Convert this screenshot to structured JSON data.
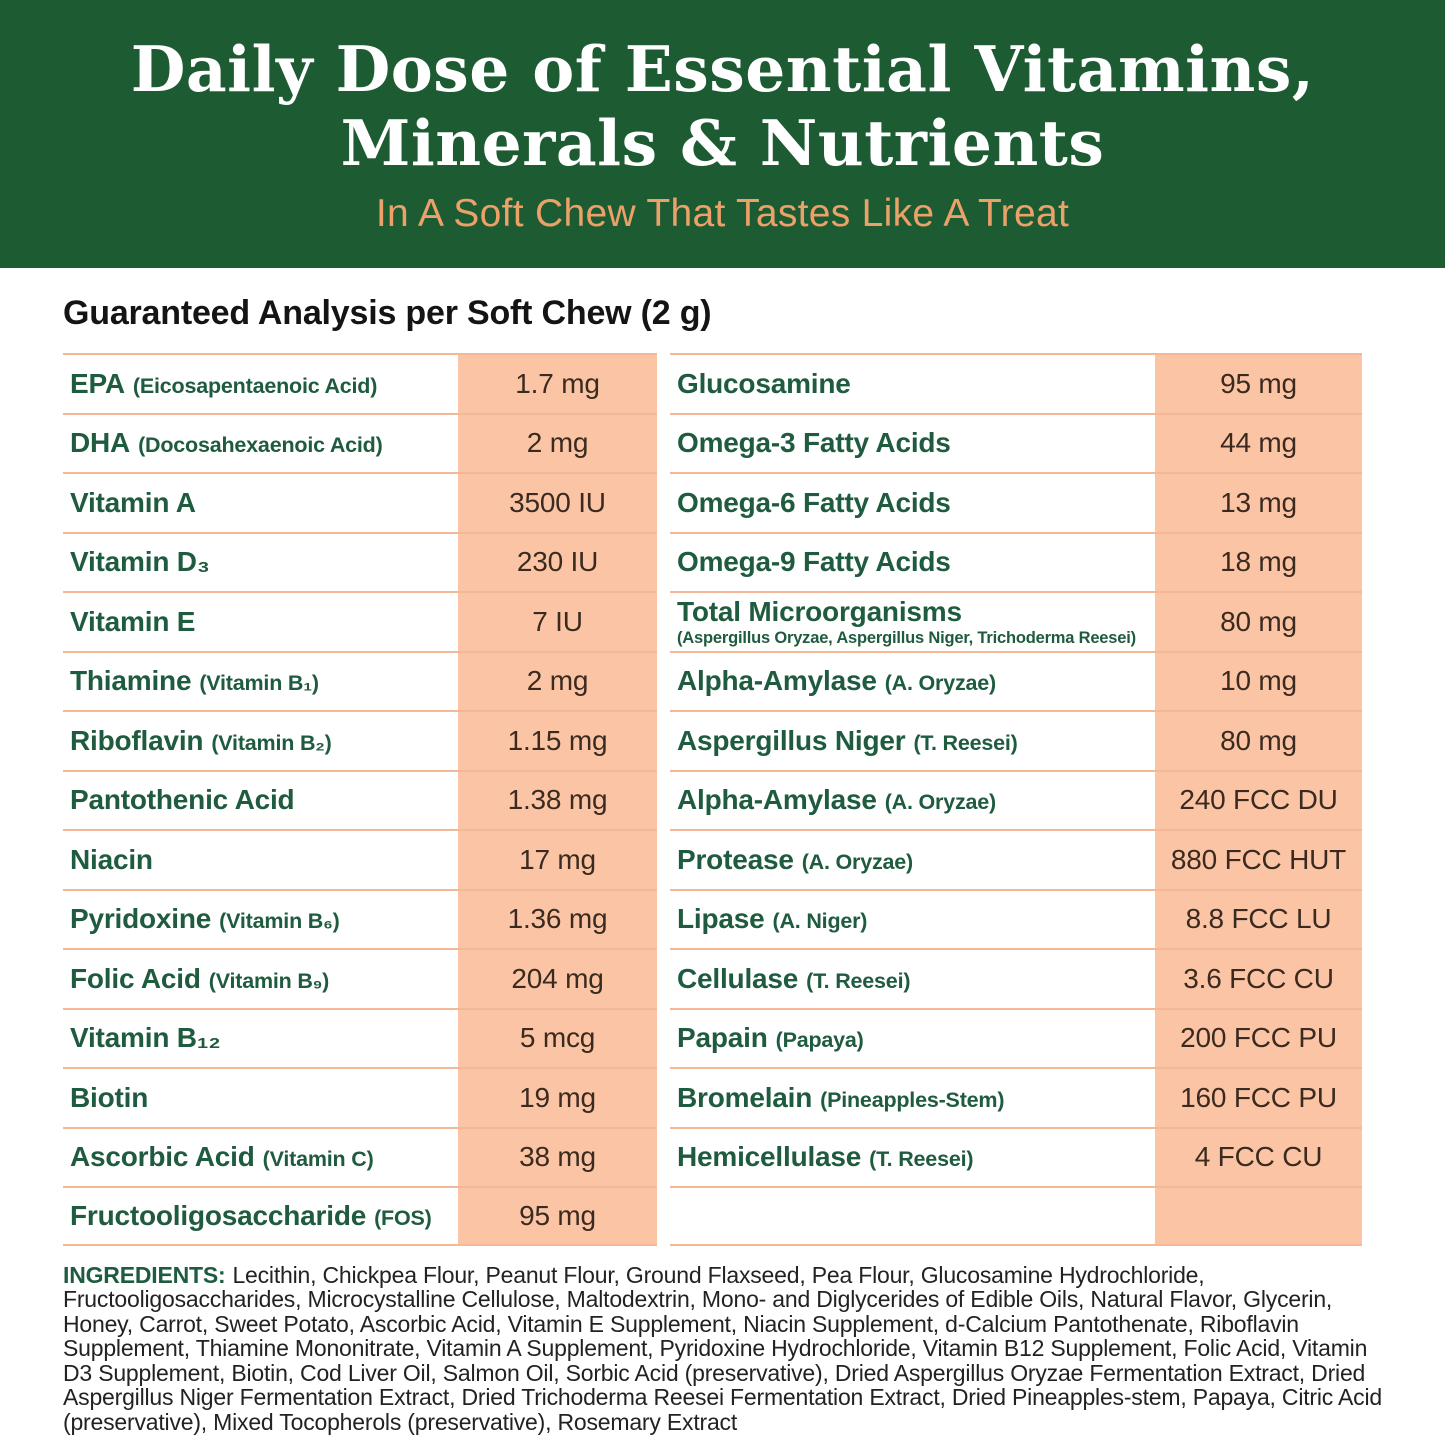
{
  "header": {
    "title_line1": "Daily Dose of Essential Vitamins,",
    "title_line2": "Minerals & Nutrients",
    "subtitle": "In A Soft Chew That Tastes Like A Treat"
  },
  "colors": {
    "banner_green": "#1d5c33",
    "subtitle_orange": "#eba168",
    "label_green": "#1f5b3e",
    "value_column_peach": "#fbc5a5",
    "separator_peach": "#f5b897",
    "value_text": "#3b2a1f"
  },
  "analysis": {
    "heading": "Guaranteed Analysis per Soft Chew (2 g)",
    "rows": [
      {
        "l_name": "EPA",
        "l_note": "(Eicosapentaenoic Acid)",
        "l_sub": "",
        "l_value": "1.7 mg",
        "r_name": "Glucosamine",
        "r_note": "",
        "r_sub": "",
        "r_value": "95 mg"
      },
      {
        "l_name": "DHA",
        "l_note": "(Docosahexaenoic Acid)",
        "l_sub": "",
        "l_value": "2 mg",
        "r_name": "Omega-3 Fatty Acids",
        "r_note": "",
        "r_sub": "",
        "r_value": "44 mg"
      },
      {
        "l_name": "Vitamin A",
        "l_note": "",
        "l_sub": "",
        "l_value": "3500 IU",
        "r_name": "Omega-6 Fatty Acids",
        "r_note": "",
        "r_sub": "",
        "r_value": "13 mg"
      },
      {
        "l_name": "Vitamin D₃",
        "l_note": "",
        "l_sub": "",
        "l_value": "230 IU",
        "r_name": "Omega-9 Fatty Acids",
        "r_note": "",
        "r_sub": "",
        "r_value": "18 mg"
      },
      {
        "l_name": "Vitamin E",
        "l_note": "",
        "l_sub": "",
        "l_value": "7 IU",
        "r_name": "Total Microorganisms",
        "r_note": "",
        "r_sub": "(Aspergillus Oryzae, Aspergillus Niger, Trichoderma Reesei)",
        "r_value": "80 mg"
      },
      {
        "l_name": "Thiamine",
        "l_note": "(Vitamin B₁)",
        "l_sub": "",
        "l_value": "2 mg",
        "r_name": "Alpha-Amylase",
        "r_note": "(A. Oryzae)",
        "r_sub": "",
        "r_value": "10 mg"
      },
      {
        "l_name": "Riboflavin",
        "l_note": "(Vitamin B₂)",
        "l_sub": "",
        "l_value": "1.15 mg",
        "r_name": "Aspergillus Niger",
        "r_note": "(T. Reesei)",
        "r_sub": "",
        "r_value": "80 mg"
      },
      {
        "l_name": "Pantothenic Acid",
        "l_note": "",
        "l_sub": "",
        "l_value": "1.38 mg",
        "r_name": "Alpha-Amylase",
        "r_note": "(A. Oryzae)",
        "r_sub": "",
        "r_value": "240 FCC DU"
      },
      {
        "l_name": "Niacin",
        "l_note": "",
        "l_sub": "",
        "l_value": "17 mg",
        "r_name": "Protease",
        "r_note": "(A. Oryzae)",
        "r_sub": "",
        "r_value": "880 FCC HUT"
      },
      {
        "l_name": "Pyridoxine",
        "l_note": "(Vitamin B₆)",
        "l_sub": "",
        "l_value": "1.36 mg",
        "r_name": "Lipase",
        "r_note": "(A. Niger)",
        "r_sub": "",
        "r_value": "8.8 FCC LU"
      },
      {
        "l_name": "Folic Acid",
        "l_note": "(Vitamin B₉)",
        "l_sub": "",
        "l_value": "204 mg",
        "r_name": "Cellulase",
        "r_note": "(T. Reesei)",
        "r_sub": "",
        "r_value": "3.6 FCC CU"
      },
      {
        "l_name": "Vitamin B₁₂",
        "l_note": "",
        "l_sub": "",
        "l_value": "5 mcg",
        "r_name": "Papain",
        "r_note": "(Papaya)",
        "r_sub": "",
        "r_value": "200 FCC PU"
      },
      {
        "l_name": "Biotin",
        "l_note": "",
        "l_sub": "",
        "l_value": "19 mg",
        "r_name": "Bromelain",
        "r_note": "(Pineapples-Stem)",
        "r_sub": "",
        "r_value": "160 FCC PU"
      },
      {
        "l_name": "Ascorbic Acid",
        "l_note": "(Vitamin C)",
        "l_sub": "",
        "l_value": "38 mg",
        "r_name": "Hemicellulase",
        "r_note": "(T. Reesei)",
        "r_sub": "",
        "r_value": "4 FCC CU"
      },
      {
        "l_name": "Fructooligosaccharide",
        "l_note": "(FOS)",
        "l_sub": "",
        "l_value": "95 mg",
        "r_name": "",
        "r_note": "",
        "r_sub": "",
        "r_value": ""
      }
    ]
  },
  "ingredients": {
    "label": "INGREDIENTS:",
    "text": "Lecithin, Chickpea Flour, Peanut Flour, Ground Flaxseed, Pea Flour, Glucosamine Hydrochloride, Fructooligosaccharides, Microcystalline Cellulose, Maltodextrin, Mono- and Diglycerides of Edible Oils, Natural Flavor, Glycerin, Honey, Carrot, Sweet Potato, Ascorbic Acid, Vitamin E Supplement, Niacin Supplement, d-Calcium Pantothenate, Riboflavin Supplement, Thiamine Mononitrate, Vitamin A Supplement, Pyridoxine Hydrochloride, Vitamin B12 Supplement, Folic Acid, Vitamin D3 Supplement, Biotin, Cod Liver Oil, Salmon Oil, Sorbic Acid (preservative), Dried Aspergillus Oryzae Fermentation Extract, Dried Aspergillus Niger Fermentation Extract, Dried Trichoderma Reesei Fermentation Extract, Dried Pineapples-stem, Papaya, Citric Acid (preservative), Mixed Tocopherols (preservative), Rosemary Extract"
  }
}
